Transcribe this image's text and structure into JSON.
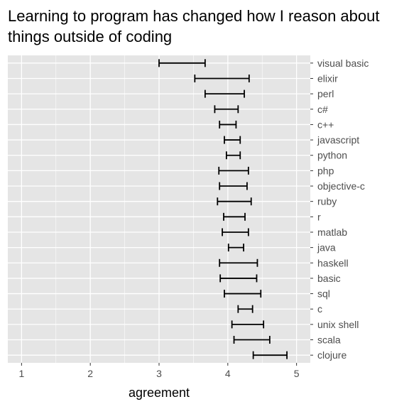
{
  "chart_data": {
    "type": "errorbar",
    "orientation": "horizontal",
    "title": "Learning to program has changed how I reason about things outside of coding",
    "xlabel": "agreement",
    "ylabel": "",
    "xlim": [
      0.8,
      5.2
    ],
    "xticks": [
      1,
      2,
      3,
      4,
      5
    ],
    "grid": true,
    "legend": "none",
    "background_color": "#e5e5e5",
    "grid_color": "#ffffff",
    "bar_color": "#000000",
    "categories": [
      "visual basic",
      "elixir",
      "perl",
      "c#",
      "c++",
      "javascript",
      "python",
      "php",
      "objective-c",
      "ruby",
      "r",
      "matlab",
      "java",
      "haskell",
      "basic",
      "sql",
      "c",
      "unix shell",
      "scala",
      "clojure"
    ],
    "lower": [
      3.0,
      3.52,
      3.67,
      3.81,
      3.88,
      3.95,
      3.98,
      3.87,
      3.88,
      3.85,
      3.94,
      3.92,
      4.01,
      3.88,
      3.89,
      3.95,
      4.15,
      4.06,
      4.09,
      4.37
    ],
    "upper": [
      3.67,
      4.31,
      4.24,
      4.15,
      4.12,
      4.18,
      4.18,
      4.3,
      4.28,
      4.34,
      4.25,
      4.3,
      4.23,
      4.43,
      4.42,
      4.48,
      4.36,
      4.52,
      4.61,
      4.86
    ]
  }
}
